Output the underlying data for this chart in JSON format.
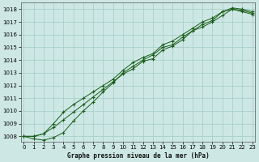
{
  "title": "Graphe pression niveau de la mer (hPa)",
  "background_color": "#cde8e4",
  "grid_color": "#aacfcb",
  "line_color": "#1a5c1a",
  "x_ticks": [
    0,
    1,
    2,
    3,
    4,
    5,
    6,
    7,
    8,
    9,
    10,
    11,
    12,
    13,
    14,
    15,
    16,
    17,
    18,
    19,
    20,
    21,
    22,
    23
  ],
  "y_ticks": [
    1008,
    1009,
    1010,
    1011,
    1012,
    1013,
    1014,
    1015,
    1016,
    1017,
    1018
  ],
  "ylim": [
    1007.6,
    1018.5
  ],
  "xlim": [
    -0.3,
    23.3
  ],
  "series1": [
    1008.0,
    1008.0,
    1008.2,
    1008.7,
    1009.3,
    1009.9,
    1010.5,
    1011.1,
    1011.7,
    1012.3,
    1012.9,
    1013.3,
    1013.9,
    1014.1,
    1014.8,
    1015.1,
    1015.6,
    1016.3,
    1016.6,
    1017.0,
    1017.5,
    1018.0,
    1017.8,
    1017.6
  ],
  "series2": [
    1008.0,
    1007.8,
    1007.7,
    1007.9,
    1008.3,
    1009.2,
    1010.0,
    1010.7,
    1011.5,
    1012.2,
    1013.0,
    1013.5,
    1014.0,
    1014.4,
    1015.0,
    1015.2,
    1015.8,
    1016.3,
    1016.8,
    1017.1,
    1017.8,
    1018.0,
    1017.9,
    1017.7
  ],
  "series3": [
    1008.0,
    1008.0,
    1008.2,
    1009.0,
    1009.9,
    1010.5,
    1011.0,
    1011.5,
    1012.0,
    1012.5,
    1013.2,
    1013.8,
    1014.2,
    1014.5,
    1015.2,
    1015.5,
    1016.0,
    1016.5,
    1017.0,
    1017.3,
    1017.8,
    1018.1,
    1018.0,
    1017.8
  ]
}
